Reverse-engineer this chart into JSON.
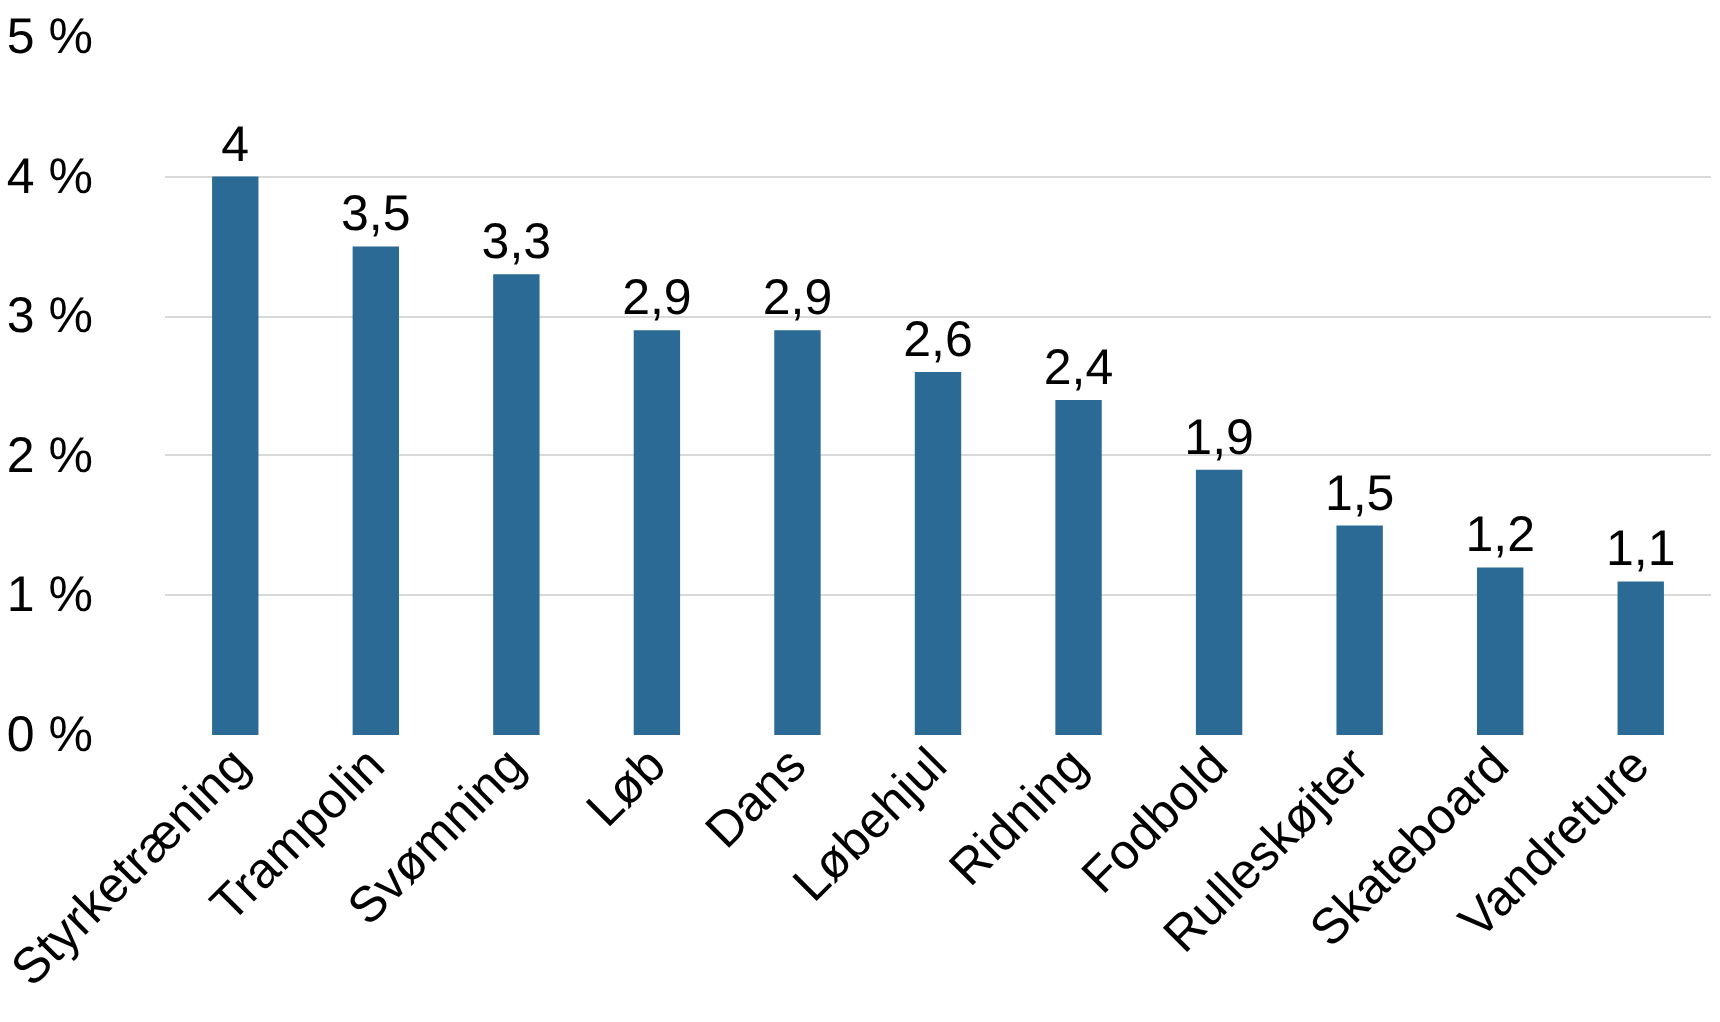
{
  "chart_data": {
    "type": "bar",
    "categories": [
      "Styrketræning",
      "Trampolin",
      "Svømning",
      "Løb",
      "Dans",
      "Løbehjul",
      "Ridning",
      "Fodbold",
      "Rulleskøjter",
      "Skateboard",
      "Vandreture"
    ],
    "values": [
      4,
      3.5,
      3.3,
      2.9,
      2.9,
      2.6,
      2.4,
      1.9,
      1.5,
      1.2,
      1.1
    ],
    "value_labels": [
      "4",
      "3,5",
      "3,3",
      "2,9",
      "2,9",
      "2,6",
      "2,4",
      "1,9",
      "1,5",
      "1,2",
      "1,1"
    ],
    "color": "#2b6a94",
    "ylim": [
      0,
      5
    ],
    "yticks": [
      {
        "value": 0,
        "label": "0 %"
      },
      {
        "value": 1,
        "label": "1 %"
      },
      {
        "value": 2,
        "label": "2 %"
      },
      {
        "value": 3,
        "label": "3 %"
      },
      {
        "value": 4,
        "label": "4 %"
      },
      {
        "value": 5,
        "label": "5 %"
      }
    ],
    "grid": "y"
  }
}
